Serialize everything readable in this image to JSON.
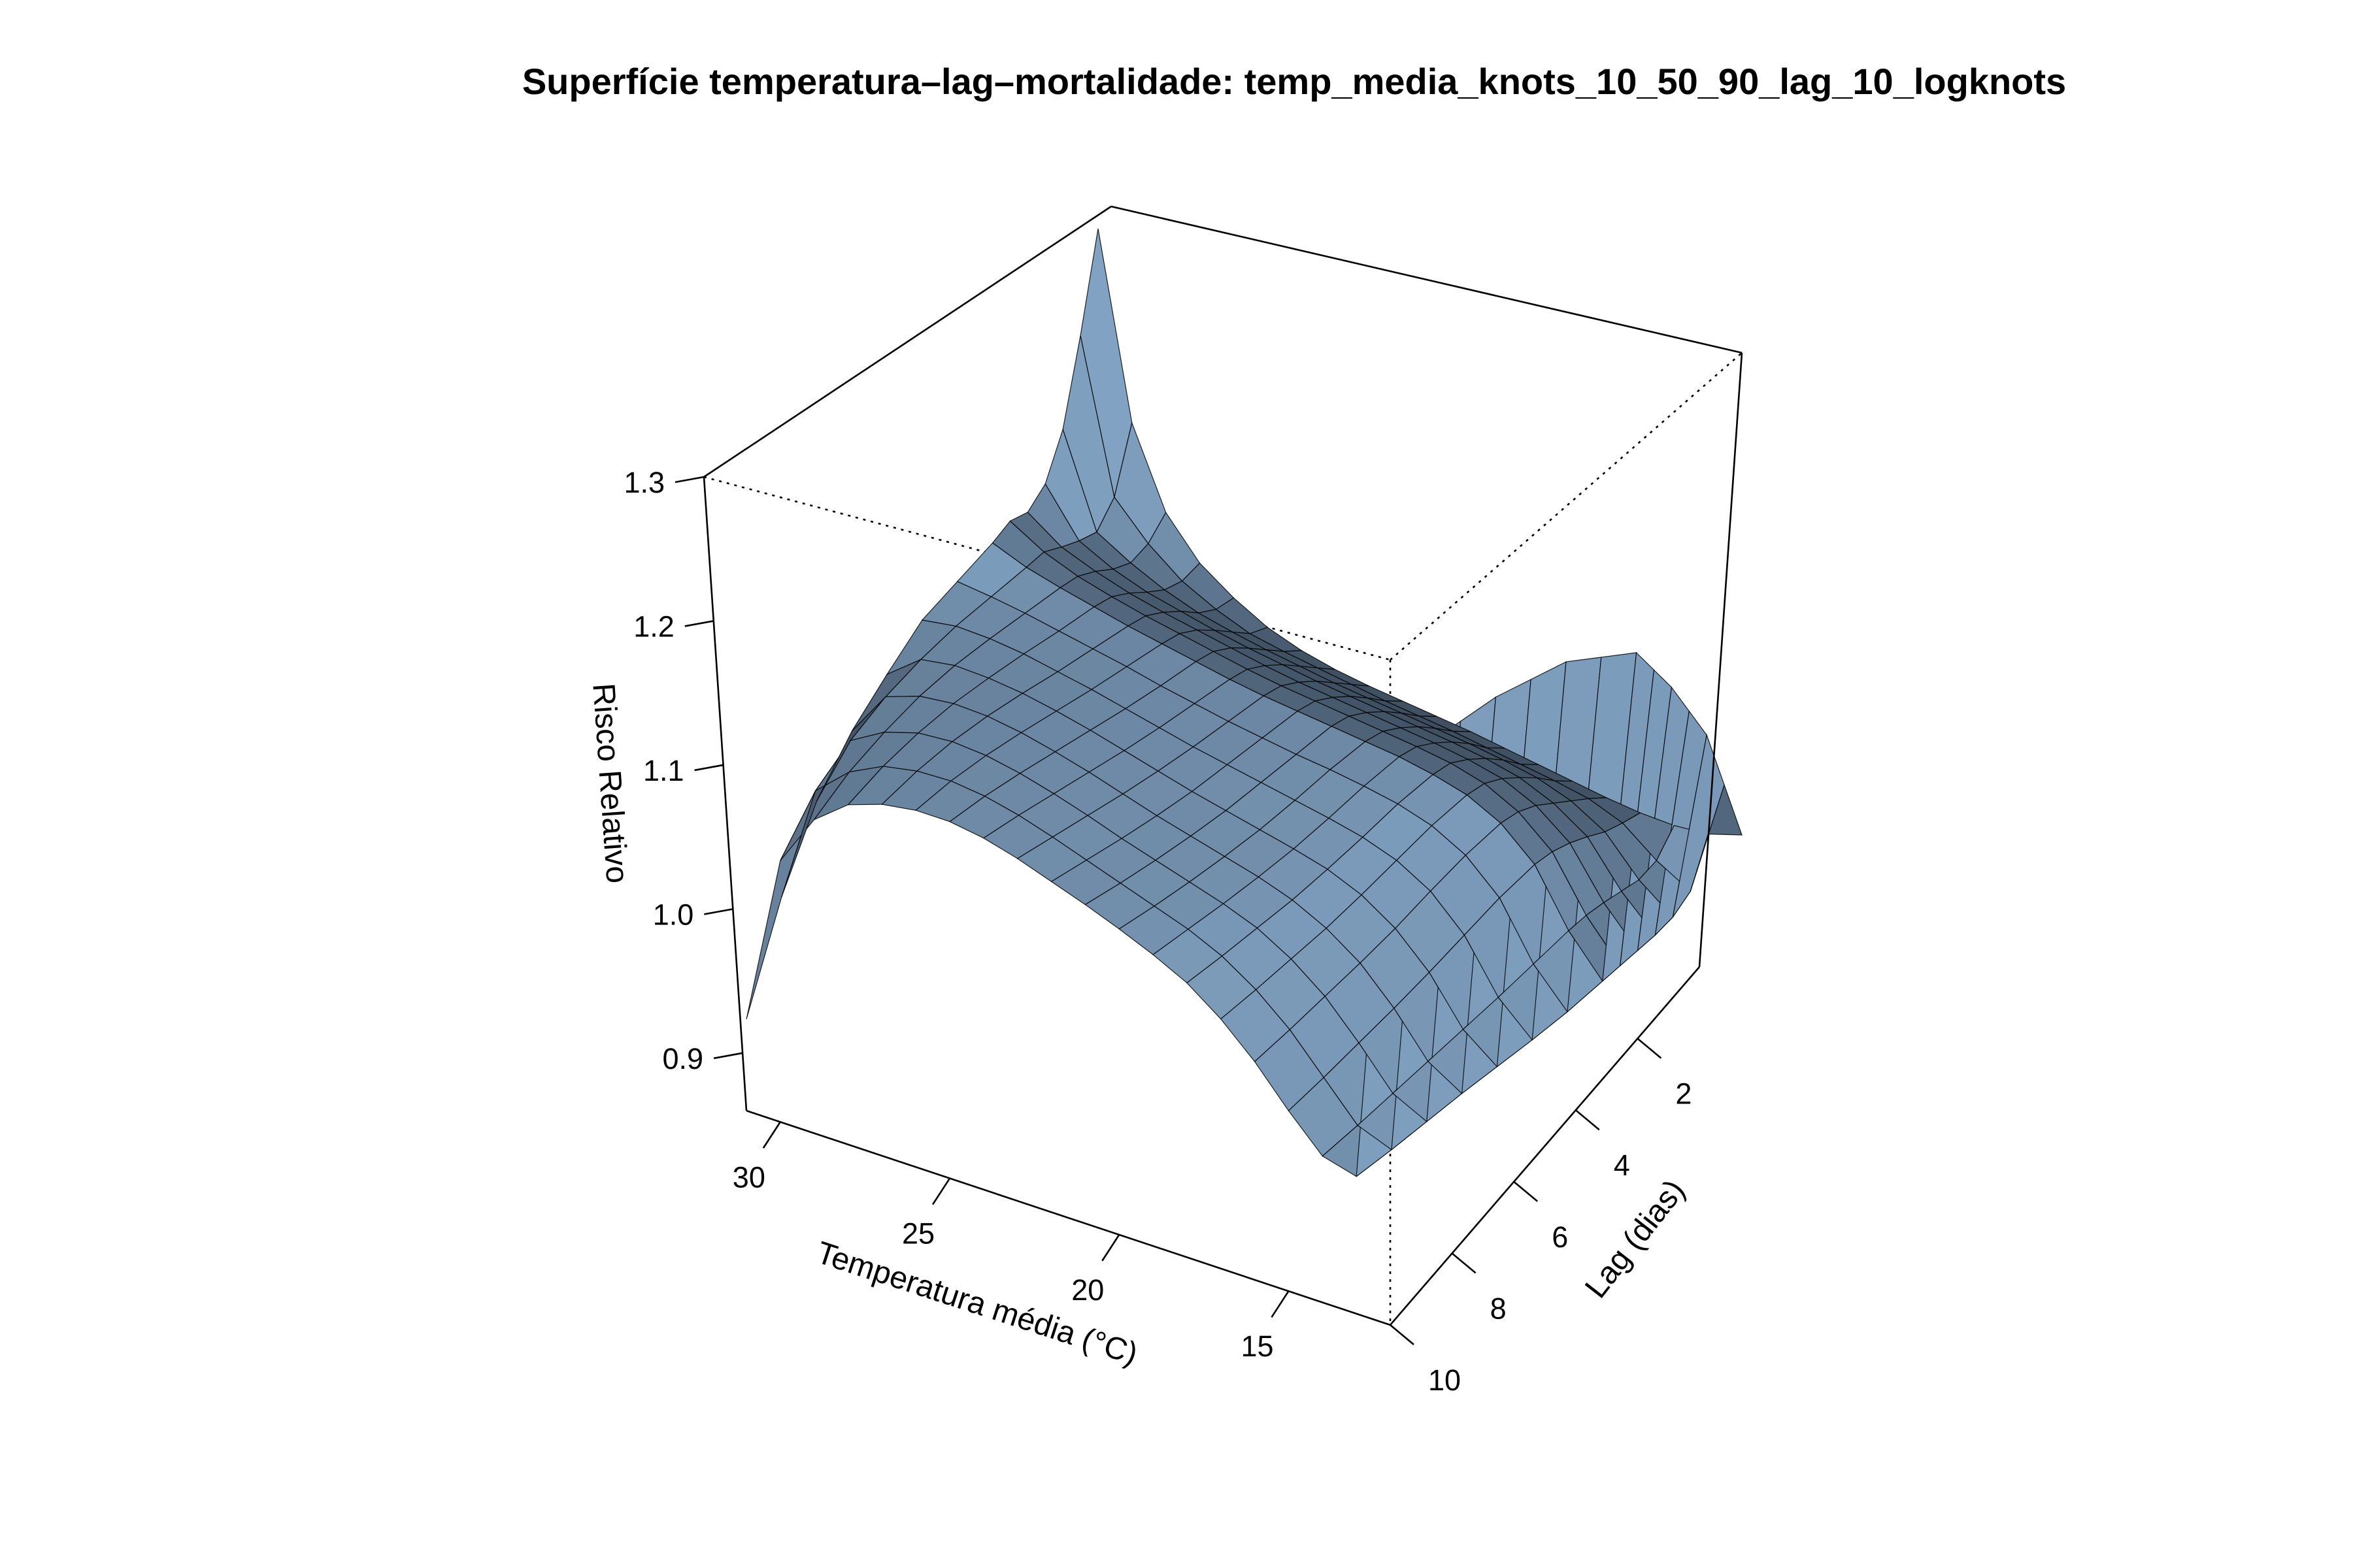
{
  "chart_data": {
    "type": "surface",
    "title": "Superfície temperatura–lag–mortalidade: temp_media_knots_10_50_90_lag_10_logknots",
    "xlabel": "Temperatura média (°C)",
    "ylabel": "Lag (dias)",
    "zlabel": "Risco Relativo",
    "xlim": [
      12,
      31
    ],
    "ylim": [
      0,
      10
    ],
    "zlim": [
      0.86,
      1.3
    ],
    "x_ticks": [
      "30",
      "25",
      "20",
      "15"
    ],
    "y_ticks": [
      "2",
      "4",
      "6",
      "8",
      "10"
    ],
    "z_ticks": [
      "0.9",
      "1.0",
      "1.1",
      "1.2",
      "1.3"
    ],
    "surface_color": "#8fb3d6",
    "mesh_color": "#000000",
    "lag_values": [
      0,
      0.5,
      1,
      1.5,
      2,
      2.5,
      3,
      4,
      5,
      6,
      7,
      8,
      9,
      10
    ],
    "temperature_values": [
      12,
      13,
      14,
      15,
      16,
      17,
      18,
      19,
      20,
      21,
      22,
      23,
      24,
      25,
      26,
      27,
      28,
      29,
      30,
      31
    ],
    "risk_rows": [
      [
        1.0,
        0.992,
        0.99,
        0.991,
        0.994,
        0.998,
        1.002,
        1.006,
        1.01,
        1.013,
        1.016,
        1.019,
        1.023,
        1.029,
        1.038,
        1.052,
        1.07,
        1.1,
        1.16,
        1.3
      ],
      [
        1.05,
        0.96,
        0.975,
        0.995,
        1.005,
        1.01,
        1.014,
        1.018,
        1.022,
        1.025,
        1.028,
        1.032,
        1.036,
        1.04,
        1.045,
        1.055,
        1.068,
        1.088,
        1.115,
        1.23
      ],
      [
        1.1,
        0.952,
        0.972,
        1.0,
        1.015,
        1.024,
        1.029,
        1.033,
        1.036,
        1.039,
        1.042,
        1.045,
        1.049,
        1.053,
        1.058,
        1.064,
        1.073,
        1.085,
        1.1,
        1.17
      ],
      [
        1.13,
        0.95,
        0.975,
        1.008,
        1.025,
        1.036,
        1.042,
        1.046,
        1.049,
        1.052,
        1.055,
        1.058,
        1.062,
        1.066,
        1.071,
        1.077,
        1.083,
        1.092,
        1.105,
        1.14
      ],
      [
        1.16,
        0.95,
        0.978,
        1.015,
        1.035,
        1.047,
        1.053,
        1.057,
        1.06,
        1.063,
        1.066,
        1.069,
        1.073,
        1.078,
        1.083,
        1.088,
        1.094,
        1.102,
        1.112,
        1.13
      ],
      [
        1.185,
        0.95,
        0.98,
        1.02,
        1.042,
        1.055,
        1.062,
        1.066,
        1.069,
        1.072,
        1.075,
        1.078,
        1.082,
        1.087,
        1.092,
        1.097,
        1.103,
        1.11,
        1.12,
        1.135
      ],
      [
        1.21,
        0.95,
        0.98,
        1.022,
        1.045,
        1.058,
        1.065,
        1.07,
        1.073,
        1.076,
        1.079,
        1.082,
        1.086,
        1.091,
        1.096,
        1.101,
        1.107,
        1.113,
        1.12,
        1.13
      ],
      [
        1.23,
        0.95,
        0.978,
        1.02,
        1.044,
        1.058,
        1.066,
        1.071,
        1.075,
        1.078,
        1.082,
        1.086,
        1.091,
        1.096,
        1.102,
        1.107,
        1.112,
        1.117,
        1.121,
        1.124
      ],
      [
        1.25,
        0.952,
        0.976,
        1.015,
        1.04,
        1.055,
        1.064,
        1.07,
        1.075,
        1.08,
        1.085,
        1.09,
        1.096,
        1.102,
        1.108,
        1.113,
        1.118,
        1.121,
        1.122,
        1.118
      ],
      [
        1.26,
        0.955,
        0.975,
        1.01,
        1.035,
        1.052,
        1.063,
        1.07,
        1.076,
        1.082,
        1.088,
        1.095,
        1.102,
        1.109,
        1.115,
        1.12,
        1.123,
        1.124,
        1.12,
        1.1
      ],
      [
        1.27,
        0.958,
        0.974,
        1.006,
        1.032,
        1.05,
        1.063,
        1.072,
        1.079,
        1.086,
        1.093,
        1.101,
        1.109,
        1.116,
        1.122,
        1.126,
        1.127,
        1.124,
        1.115,
        1.08
      ],
      [
        1.275,
        0.96,
        0.973,
        1.003,
        1.03,
        1.05,
        1.065,
        1.075,
        1.083,
        1.091,
        1.099,
        1.108,
        1.116,
        1.123,
        1.128,
        1.13,
        1.128,
        1.12,
        1.105,
        1.05
      ],
      [
        1.28,
        0.962,
        0.972,
        1.0,
        1.028,
        1.05,
        1.067,
        1.079,
        1.088,
        1.097,
        1.106,
        1.115,
        1.123,
        1.129,
        1.132,
        1.131,
        1.126,
        1.113,
        1.09,
        1.0
      ],
      [
        1.29,
        0.965,
        0.972,
        0.998,
        1.027,
        1.051,
        1.07,
        1.083,
        1.094,
        1.104,
        1.113,
        1.122,
        1.129,
        1.133,
        1.133,
        1.129,
        1.12,
        1.1,
        1.06,
        0.93
      ]
    ]
  }
}
